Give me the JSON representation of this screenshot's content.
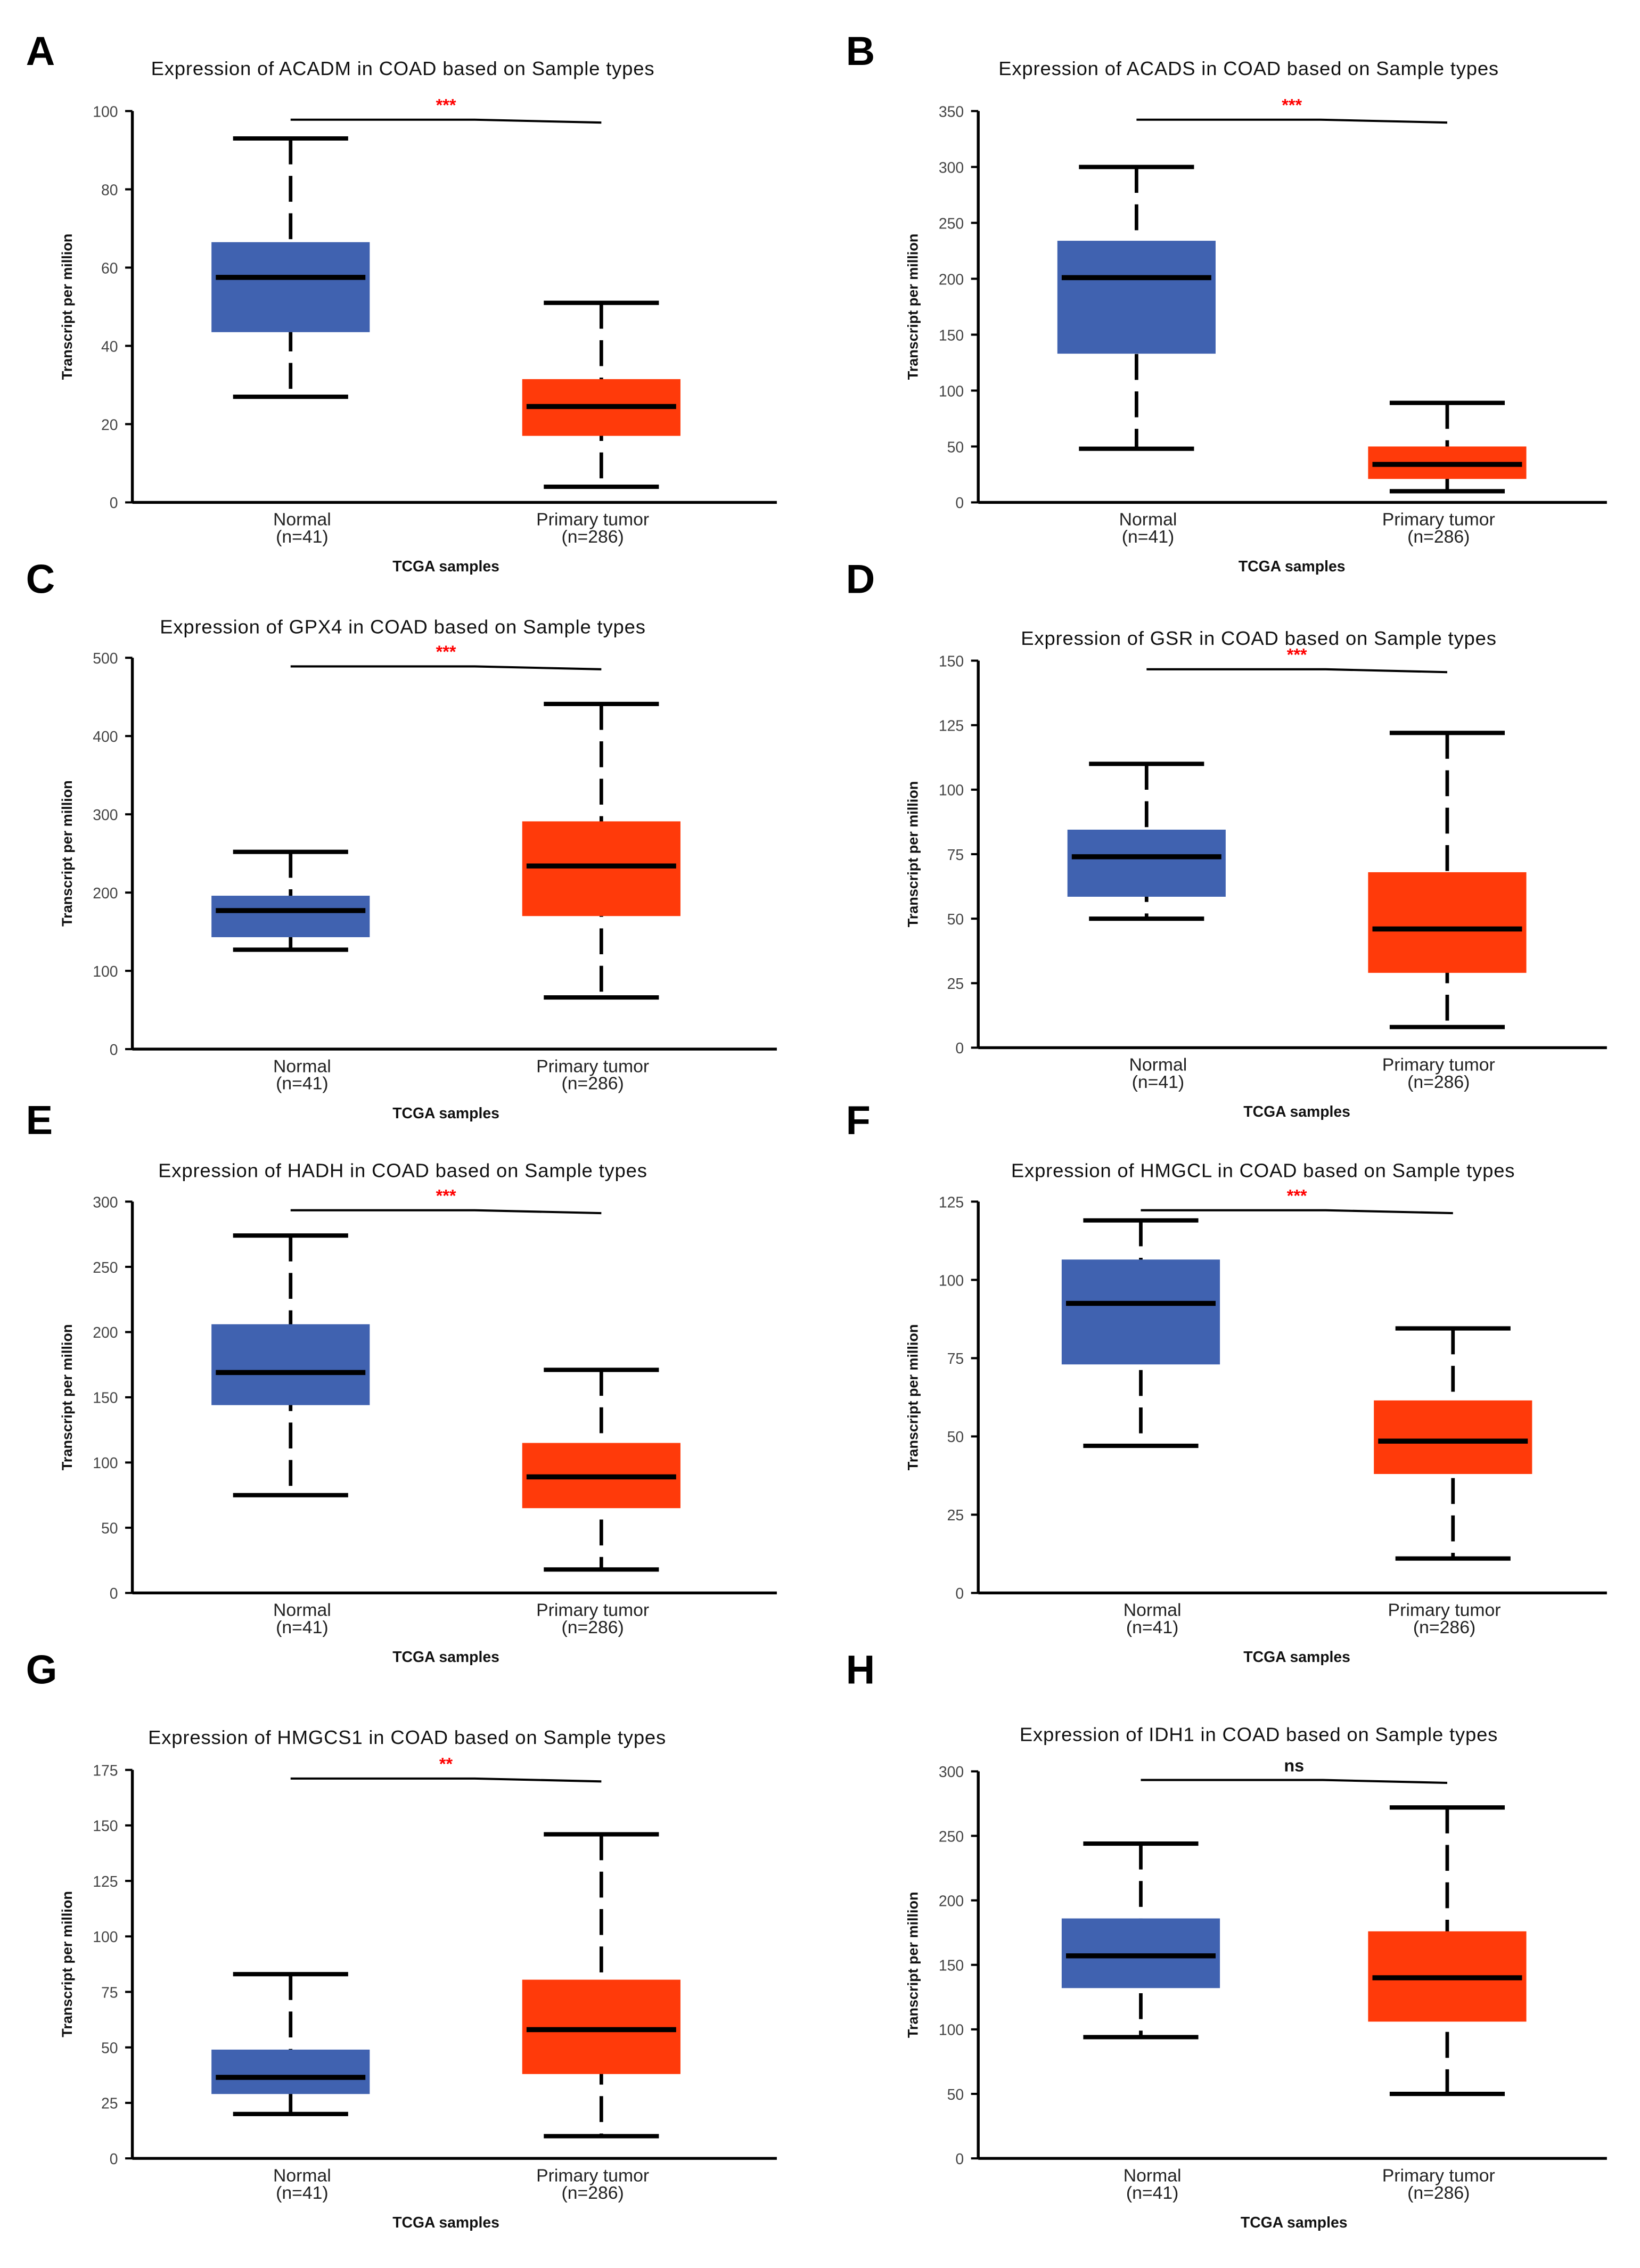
{
  "colors": {
    "normal": "#4062B0",
    "tumor": "#FF3A0A",
    "sig": "#FF0000",
    "ns": "#111111"
  },
  "chart_data": [
    {
      "panel": "A",
      "type": "box",
      "title": "Expression of ACADM in COAD based on Sample types",
      "ylabel": "Transcript per million",
      "xlabel": "TCGA samples",
      "ylim": [
        0,
        100
      ],
      "yticks": [
        0,
        20,
        40,
        60,
        80,
        100
      ],
      "significance": "***",
      "categories": [
        {
          "name": "Normal",
          "n": "(n=41)",
          "min": 27,
          "q1": 43.5,
          "median": 57.5,
          "q3": 66.5,
          "max": 93
        },
        {
          "name": "Primary tumor",
          "n": "(n=286)",
          "min": 4,
          "q1": 17,
          "median": 24.5,
          "q3": 31.5,
          "max": 51
        }
      ]
    },
    {
      "panel": "B",
      "type": "box",
      "title": "Expression of ACADS in COAD based on Sample types",
      "ylabel": "Transcript per million",
      "xlabel": "TCGA samples",
      "ylim": [
        0,
        350
      ],
      "yticks": [
        0,
        50,
        100,
        150,
        200,
        250,
        300,
        350
      ],
      "significance": "***",
      "categories": [
        {
          "name": "Normal",
          "n": "(n=41)",
          "min": 48,
          "q1": 133,
          "median": 201,
          "q3": 234,
          "max": 300
        },
        {
          "name": "Primary tumor",
          "n": "(n=286)",
          "min": 10,
          "q1": 21,
          "median": 34,
          "q3": 50,
          "max": 89
        }
      ]
    },
    {
      "panel": "C",
      "type": "box",
      "title": "Expression of GPX4  in COAD based on Sample types",
      "ylabel": "Transcript per million",
      "xlabel": "TCGA samples",
      "ylim": [
        0,
        500
      ],
      "yticks": [
        0,
        100,
        200,
        300,
        400,
        500
      ],
      "significance": "***",
      "categories": [
        {
          "name": "Normal",
          "n": "(n=41)",
          "min": 127,
          "q1": 143,
          "median": 177,
          "q3": 196,
          "max": 252
        },
        {
          "name": "Primary tumor",
          "n": "(n=286)",
          "min": 66,
          "q1": 170,
          "median": 234,
          "q3": 291,
          "max": 441
        }
      ]
    },
    {
      "panel": "D",
      "type": "box",
      "title": "Expression of GSR  in COAD based on Sample types",
      "ylabel": "Transcript per million",
      "xlabel": "TCGA samples",
      "ylim": [
        0,
        150
      ],
      "yticks": [
        0,
        25,
        50,
        75,
        100,
        125,
        150
      ],
      "significance": "***",
      "categories": [
        {
          "name": "Normal",
          "n": "(n=41)",
          "min": 50,
          "q1": 58.5,
          "median": 74,
          "q3": 84.5,
          "max": 110
        },
        {
          "name": "Primary tumor",
          "n": "(n=286)",
          "min": 8,
          "q1": 29,
          "median": 46,
          "q3": 68,
          "max": 122
        }
      ]
    },
    {
      "panel": "E",
      "type": "box",
      "title": "Expression of HADH  in COAD based on Sample types",
      "ylabel": "Transcript per million",
      "xlabel": "TCGA samples",
      "ylim": [
        0,
        300
      ],
      "yticks": [
        0,
        50,
        100,
        150,
        200,
        250,
        300
      ],
      "significance": "***",
      "categories": [
        {
          "name": "Normal",
          "n": "(n=41)",
          "min": 75,
          "q1": 144,
          "median": 169,
          "q3": 206,
          "max": 274
        },
        {
          "name": "Primary tumor",
          "n": "(n=286)",
          "min": 18,
          "q1": 65,
          "median": 89,
          "q3": 115,
          "max": 171
        }
      ]
    },
    {
      "panel": "F",
      "type": "box",
      "title": "Expression of HMGCL in COAD based on Sample types",
      "ylabel": "Transcript per million",
      "xlabel": "TCGA samples",
      "ylim": [
        0,
        125
      ],
      "yticks": [
        0,
        25,
        50,
        75,
        100,
        125
      ],
      "significance": "***",
      "categories": [
        {
          "name": "Normal",
          "n": "(n=41)",
          "min": 47,
          "q1": 73,
          "median": 92.5,
          "q3": 106.5,
          "max": 119
        },
        {
          "name": "Primary tumor",
          "n": "(n=286)",
          "min": 11,
          "q1": 38,
          "median": 48.5,
          "q3": 61.5,
          "max": 84.5
        }
      ]
    },
    {
      "panel": "G",
      "type": "box",
      "title": "Expression of HMGCS1 in COAD based on Sample types",
      "ylabel": "Transcript per million",
      "xlabel": "TCGA samples",
      "ylim": [
        0,
        175
      ],
      "yticks": [
        0,
        25,
        50,
        75,
        100,
        125,
        150,
        175
      ],
      "significance": "**",
      "categories": [
        {
          "name": "Normal",
          "n": "(n=41)",
          "min": 20,
          "q1": 29,
          "median": 36.5,
          "q3": 49,
          "max": 83
        },
        {
          "name": "Primary tumor",
          "n": "(n=286)",
          "min": 10,
          "q1": 38,
          "median": 58,
          "q3": 80.5,
          "max": 146
        }
      ]
    },
    {
      "panel": "H",
      "type": "box",
      "title": "Expression of IDH1  in COAD based on Sample types",
      "ylabel": "Transcript per million",
      "xlabel": "TCGA samples",
      "ylim": [
        0,
        300
      ],
      "yticks": [
        0,
        50,
        100,
        150,
        200,
        250,
        300
      ],
      "significance": "ns",
      "categories": [
        {
          "name": "Normal",
          "n": "(n=41)",
          "min": 94,
          "q1": 132,
          "median": 157,
          "q3": 186,
          "max": 244
        },
        {
          "name": "Primary tumor",
          "n": "(n=286)",
          "min": 50,
          "q1": 106,
          "median": 140,
          "q3": 176,
          "max": 272
        }
      ]
    }
  ]
}
